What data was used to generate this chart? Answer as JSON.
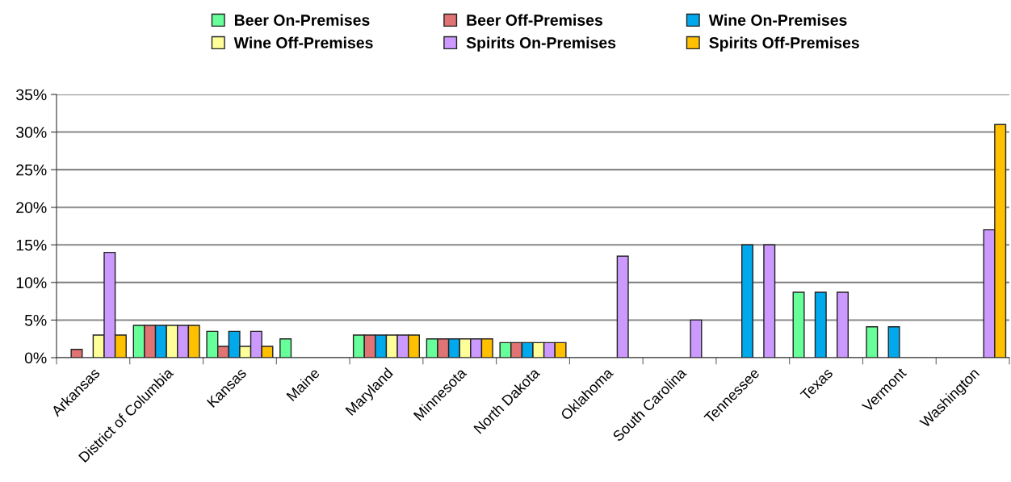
{
  "chart_data": {
    "type": "bar",
    "categories": [
      "Arkansas",
      "District of Columbia",
      "Kansas",
      "Maine",
      "Maryland",
      "Minnesota",
      "North Dakota",
      "Oklahoma",
      "South Carolina",
      "Tennessee",
      "Texas",
      "Vermont",
      "Washington"
    ],
    "series": [
      {
        "name": "Beer On-Premises",
        "color": "#66ff99",
        "values": [
          null,
          4.3,
          3.5,
          2.5,
          3,
          2.5,
          2,
          null,
          null,
          null,
          8.7,
          4.1,
          null
        ]
      },
      {
        "name": "Beer Off-Premises",
        "color": "#e07373",
        "values": [
          1.1,
          4.3,
          1.5,
          null,
          3,
          2.5,
          2,
          null,
          null,
          null,
          null,
          null,
          null
        ]
      },
      {
        "name": "Wine On-Premises",
        "color": "#00a8ec",
        "values": [
          null,
          4.3,
          3.5,
          null,
          3,
          2.5,
          2,
          null,
          null,
          15,
          8.7,
          4.1,
          null
        ]
      },
      {
        "name": "Wine Off-Premises",
        "color": "#ffff99",
        "values": [
          3,
          4.3,
          1.5,
          null,
          3,
          2.5,
          2,
          null,
          null,
          null,
          null,
          null,
          null
        ]
      },
      {
        "name": "Spirits On-Premises",
        "color": "#cc99ff",
        "values": [
          14,
          4.3,
          3.5,
          null,
          3,
          2.5,
          2,
          13.5,
          5,
          15,
          8.7,
          null,
          17
        ]
      },
      {
        "name": "Spirits Off-Premises",
        "color": "#ffc000",
        "values": [
          3,
          4.3,
          1.5,
          null,
          3,
          2.5,
          2,
          null,
          null,
          null,
          null,
          null,
          31
        ]
      }
    ],
    "ylim": [
      0,
      35
    ],
    "yticks": [
      {
        "value": 0,
        "label": "0%"
      },
      {
        "value": 5,
        "label": "5%"
      },
      {
        "value": 10,
        "label": "10%"
      },
      {
        "value": 15,
        "label": "15%"
      },
      {
        "value": 20,
        "label": "20%"
      },
      {
        "value": 25,
        "label": "25%"
      },
      {
        "value": 30,
        "label": "30%"
      },
      {
        "value": 35,
        "label": "35%"
      }
    ],
    "grid": "y",
    "legend": "top"
  }
}
